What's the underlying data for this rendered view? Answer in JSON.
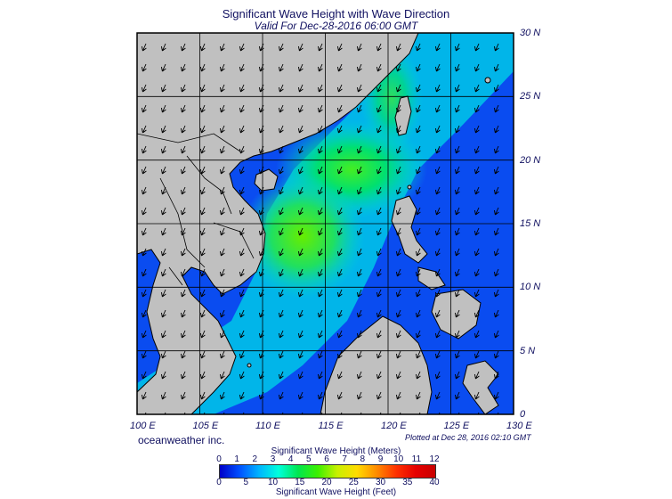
{
  "title": "Significant Wave Height with Wave Direction",
  "subtitle": "Valid For Dec-28-2016 06:00 GMT",
  "credit": "oceanweather inc.",
  "plotted": "Plotted at Dec 28, 2016 02:10 GMT",
  "map": {
    "lon_range": [
      100,
      130
    ],
    "lat_range": [
      0,
      30
    ],
    "lon_labels": [
      "100 E",
      "105 E",
      "110 E",
      "115 E",
      "120 E",
      "125 E",
      "130 E"
    ],
    "lat_labels": [
      "30 N",
      "25 N",
      "20 N",
      "15 N",
      "10 N",
      "5 N",
      "0"
    ],
    "land_color": "#c0c0c0",
    "grid": true,
    "arrows_direction": "from NE to SW"
  },
  "colorbar": {
    "title_top": "Significant Wave Height (Meters)",
    "title_bottom": "Significant Wave Height (Feet)",
    "meters_ticks": [
      "0",
      "1",
      "2",
      "3",
      "4",
      "5",
      "6",
      "7",
      "8",
      "9",
      "10",
      "11",
      "12"
    ],
    "feet_ticks": [
      "0",
      "5",
      "10",
      "15",
      "20",
      "25",
      "30",
      "35",
      "40"
    ],
    "colors": [
      "#0000c8",
      "#0050ff",
      "#00b4ff",
      "#00ffdc",
      "#00e650",
      "#3cf000",
      "#c8f000",
      "#ffdc00",
      "#ff8c00",
      "#ff3200",
      "#e60000",
      "#c80000"
    ]
  }
}
